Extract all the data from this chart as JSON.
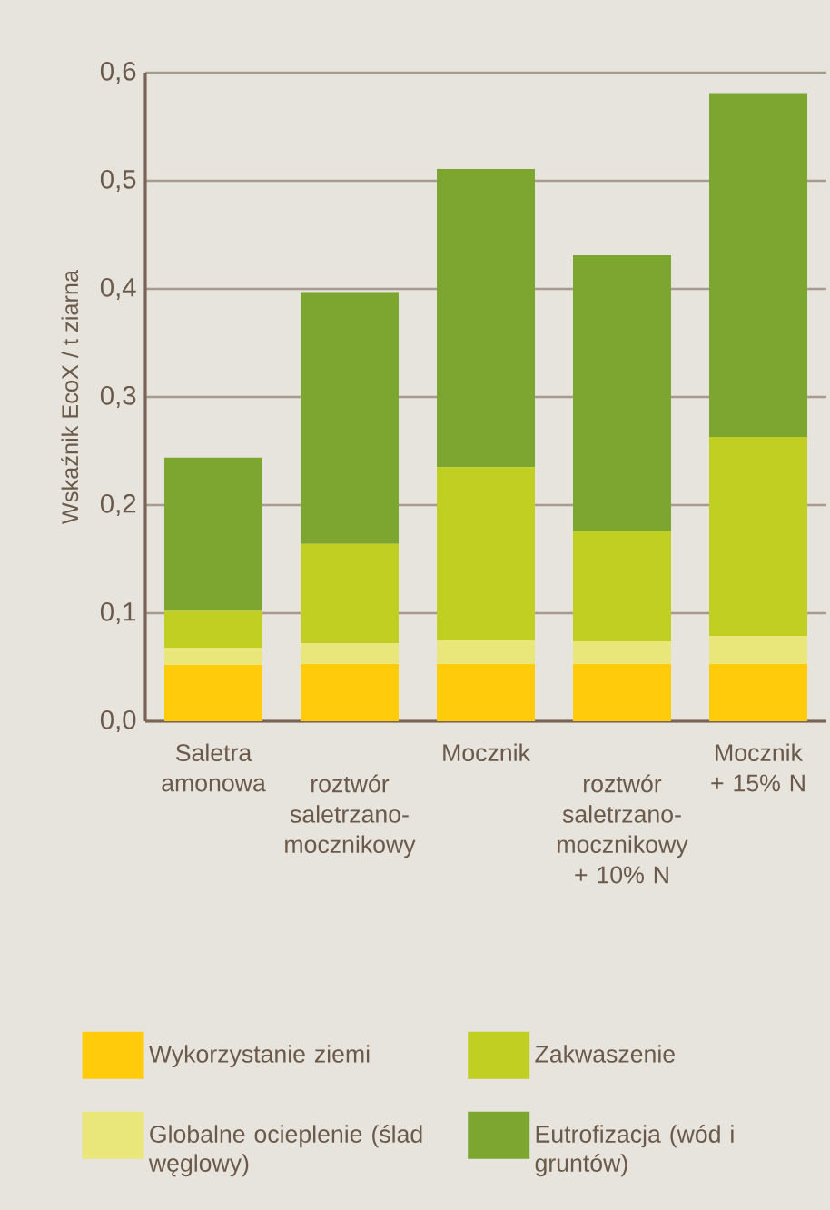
{
  "chart_data": {
    "type": "bar",
    "stacked": true,
    "ylabel": "Wskaźnik EcoX / t ziarna",
    "categories": [
      "Saletra amonowa",
      "roztwór saletrzano-mocznikowy",
      "Mocznik",
      "roztwór saletrzano-mocznikowy + 10% N",
      "Mocznik + 15% N"
    ],
    "series": [
      {
        "name": "Wykorzystanie ziemi",
        "color": "#ffcb0a",
        "values": [
          0.052,
          0.053,
          0.053,
          0.053,
          0.053
        ]
      },
      {
        "name": "Globalne ocieplenie (ślad węglowy)",
        "color": "#e9e77a",
        "values": [
          0.016,
          0.019,
          0.022,
          0.021,
          0.026
        ]
      },
      {
        "name": "Zakwaszenie",
        "color": "#c0cf22",
        "values": [
          0.034,
          0.092,
          0.16,
          0.102,
          0.184
        ]
      },
      {
        "name": "Eutrofizacja (wód i gruntów)",
        "color": "#7ca62f",
        "values": [
          0.142,
          0.233,
          0.276,
          0.255,
          0.318
        ]
      }
    ],
    "ylim": [
      0,
      0.6
    ],
    "yticks": [
      {
        "value": 0,
        "label": "0,0"
      },
      {
        "value": 0.1,
        "label": "0,1"
      },
      {
        "value": 0.2,
        "label": "0,2"
      },
      {
        "value": 0.3,
        "label": "0,3"
      },
      {
        "value": 0.4,
        "label": "0,4"
      },
      {
        "value": 0.5,
        "label": "0,5"
      },
      {
        "value": 0.6,
        "label": "0,6"
      }
    ],
    "grid": "y",
    "legend": "bottom"
  }
}
